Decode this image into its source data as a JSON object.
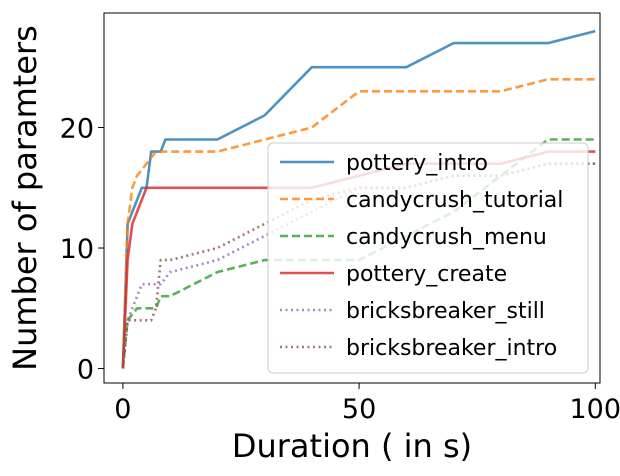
{
  "chart_data": {
    "type": "line",
    "title": "",
    "xlabel": "Duration ( in s)",
    "ylabel": "Number of paramters",
    "xlim": [
      -4,
      101
    ],
    "ylim": [
      -1.2,
      29.5
    ],
    "xticks": [
      0,
      50,
      100
    ],
    "yticks": [
      0,
      10,
      20
    ],
    "grid": false,
    "legend_position": "lower-right",
    "series": [
      {
        "name": "pottery_intro",
        "color": "#1f77b4",
        "dash": "solid",
        "x": [
          0,
          1,
          2,
          3,
          4,
          5,
          6,
          7,
          8,
          9,
          20,
          30,
          40,
          50,
          60,
          70,
          80,
          90,
          100
        ],
        "y": [
          0,
          12,
          13,
          14,
          15,
          15,
          18,
          18,
          18,
          19,
          19,
          21,
          25,
          25,
          25,
          27,
          27,
          27,
          28
        ]
      },
      {
        "name": "candycrush_tutorial",
        "color": "#ff7f0e",
        "dash": "dashed",
        "x": [
          0,
          1,
          2,
          3,
          5,
          7,
          10,
          20,
          40,
          50,
          60,
          70,
          80,
          90,
          100
        ],
        "y": [
          0,
          12,
          15,
          16,
          17,
          18,
          18,
          18,
          20,
          23,
          23,
          23,
          23,
          24,
          24
        ]
      },
      {
        "name": "candycrush_menu",
        "color": "#2ca02c",
        "dash": "dashed",
        "x": [
          0,
          1,
          3,
          7,
          8,
          10,
          20,
          30,
          40,
          50,
          60,
          70,
          80,
          90,
          100
        ],
        "y": [
          0,
          4,
          5,
          5,
          6,
          6,
          8,
          9,
          9,
          9,
          11,
          13,
          16,
          19,
          19
        ]
      },
      {
        "name": "pottery_create",
        "color": "#d62728",
        "dash": "solid",
        "x": [
          0,
          1,
          2,
          3,
          5,
          7,
          10,
          20,
          30,
          40,
          50,
          60,
          70,
          80,
          90,
          100
        ],
        "y": [
          0,
          9,
          12,
          13,
          15,
          15,
          15,
          15,
          15,
          15,
          16,
          17,
          17,
          17,
          18,
          18
        ]
      },
      {
        "name": "bricksbreaker_still",
        "color": "#9467bd",
        "dash": "dotted",
        "x": [
          0,
          1,
          2,
          3,
          4,
          7,
          8,
          10,
          20,
          30,
          40,
          50,
          60,
          70,
          80,
          90,
          100
        ],
        "y": [
          0,
          4,
          5,
          6,
          7,
          7,
          7,
          8,
          9,
          11,
          13,
          15,
          15,
          16,
          16,
          17,
          17
        ]
      },
      {
        "name": "bricksbreaker_intro",
        "color": "#8c564b",
        "dash": "dotted",
        "x": [
          0,
          1,
          2,
          6,
          7,
          8,
          10,
          20,
          30,
          40,
          50,
          60,
          70,
          80,
          90,
          100
        ],
        "y": [
          0,
          4,
          4,
          4,
          5,
          9,
          9,
          10,
          12,
          14,
          15,
          15,
          16,
          16,
          17,
          17
        ]
      }
    ]
  }
}
